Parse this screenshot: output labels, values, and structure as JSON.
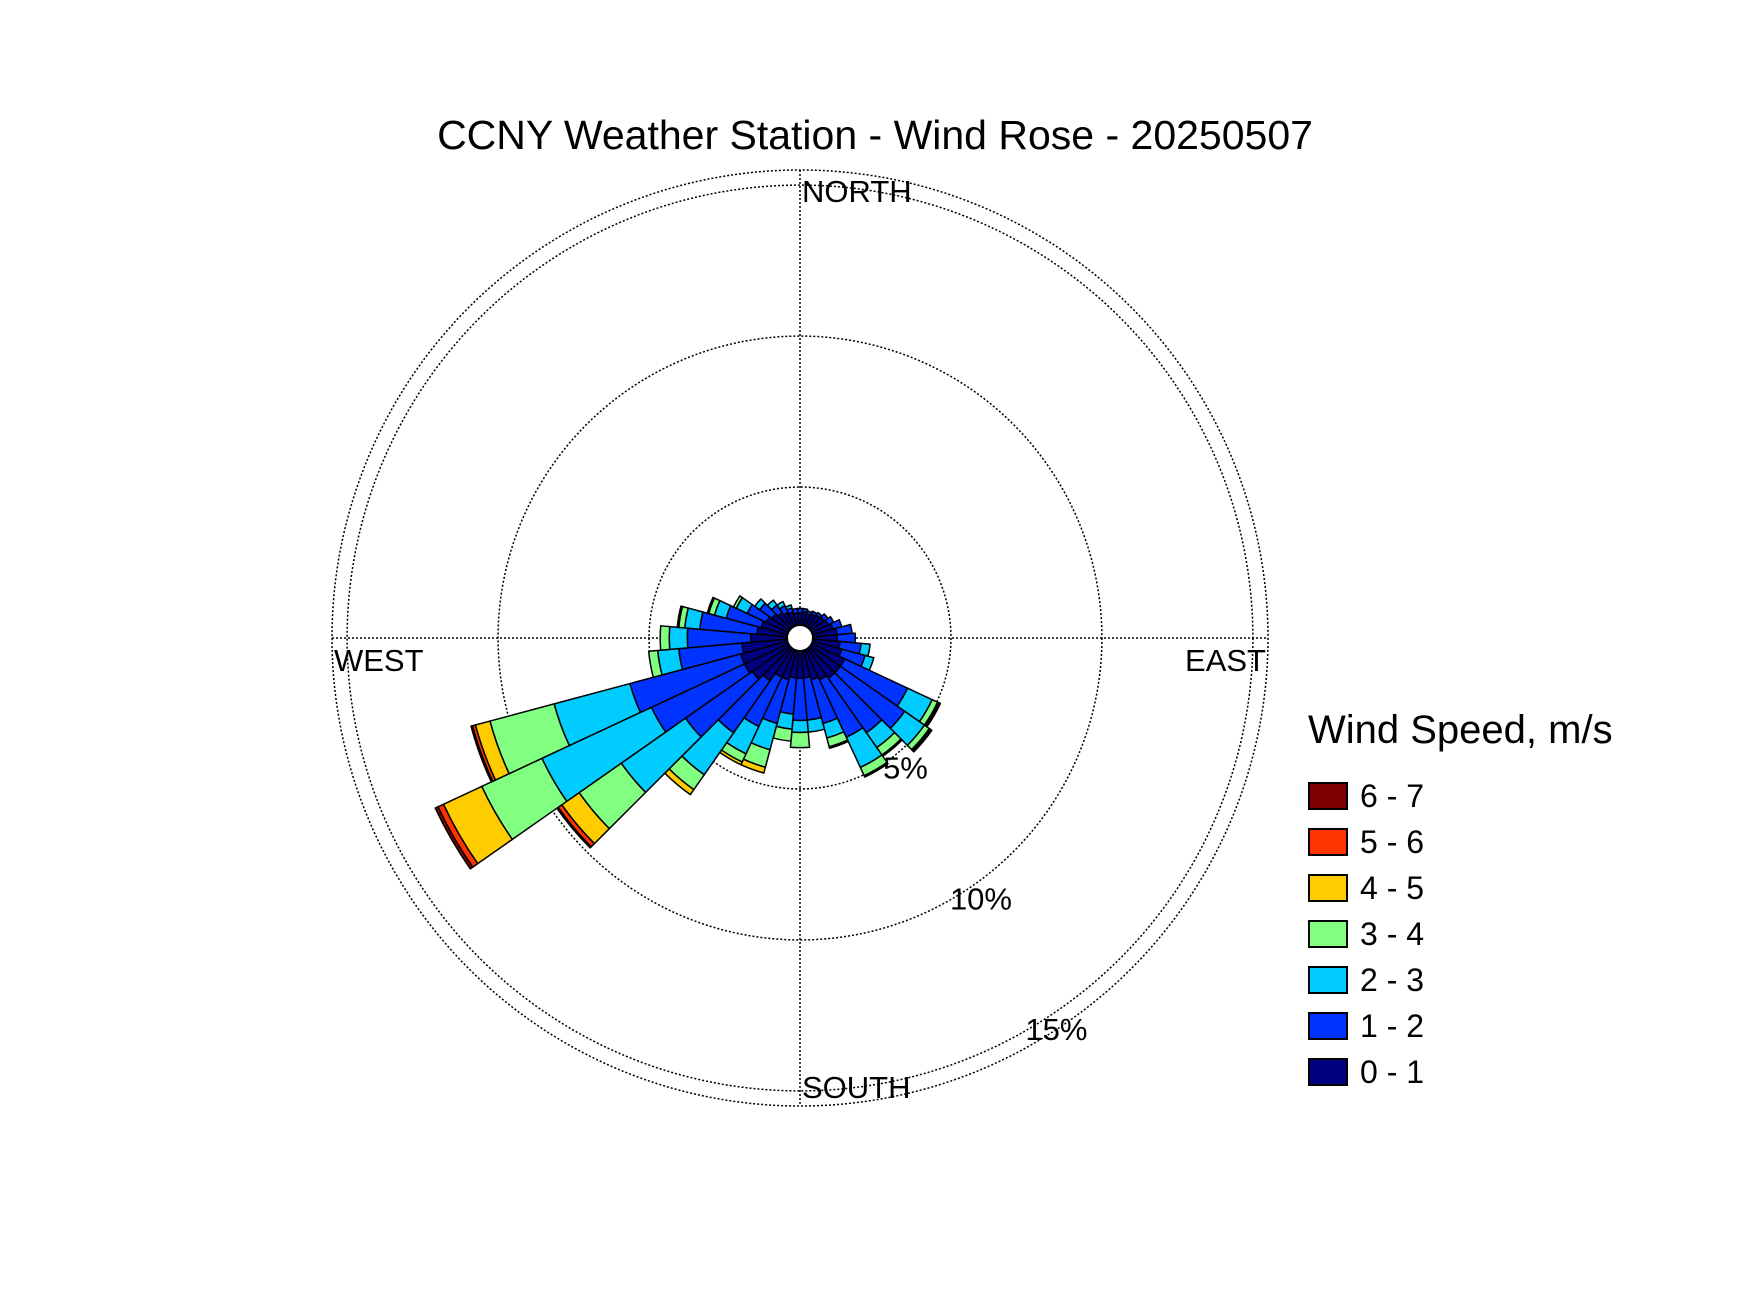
{
  "chart_data": {
    "type": "wind-rose",
    "title": "CCNY Weather Station - Wind Rose - 20250507",
    "direction_labels": {
      "north": "NORTH",
      "south": "SOUTH",
      "east": "EAST",
      "west": "WEST"
    },
    "radial_ticks": [
      {
        "value": 5,
        "label": "5%"
      },
      {
        "value": 10,
        "label": "10%"
      },
      {
        "value": 15,
        "label": "15%"
      }
    ],
    "radial_max": 15.5,
    "legend_title": "Wind Speed, m/s",
    "speed_bins": [
      {
        "label": "0 - 1",
        "color": "#000080"
      },
      {
        "label": "1 - 2",
        "color": "#0033ff"
      },
      {
        "label": "2 - 3",
        "color": "#00ccff"
      },
      {
        "label": "3 - 4",
        "color": "#80ff80"
      },
      {
        "label": "4 - 5",
        "color": "#ffcc00"
      },
      {
        "label": "5 - 6",
        "color": "#ff3300"
      },
      {
        "label": "6 - 7",
        "color": "#800000"
      }
    ],
    "sector_width_deg": 10,
    "sectors": [
      {
        "dir": 0,
        "cum": [
          0.4,
          0.55
        ]
      },
      {
        "dir": 10,
        "cum": [
          0.45,
          0.55
        ]
      },
      {
        "dir": 20,
        "cum": [
          0.4,
          0.5
        ]
      },
      {
        "dir": 30,
        "cum": [
          0.45,
          0.55
        ]
      },
      {
        "dir": 40,
        "cum": [
          0.5,
          0.6
        ]
      },
      {
        "dir": 50,
        "cum": [
          0.55,
          0.7
        ]
      },
      {
        "dir": 60,
        "cum": [
          0.6,
          0.8
        ]
      },
      {
        "dir": 70,
        "cum": [
          0.7,
          1.0
        ]
      },
      {
        "dir": 80,
        "cum": [
          0.8,
          1.3
        ]
      },
      {
        "dir": 90,
        "cum": [
          0.8,
          1.4
        ]
      },
      {
        "dir": 100,
        "cum": [
          0.9,
          1.6,
          1.9
        ]
      },
      {
        "dir": 110,
        "cum": [
          1.0,
          1.8,
          2.1
        ]
      },
      {
        "dir": 120,
        "cum": [
          1.2,
          3.5,
          4.4,
          4.6,
          4.65,
          4.7
        ]
      },
      {
        "dir": 130,
        "cum": [
          1.2,
          3.8,
          4.6,
          4.8,
          4.85,
          4.9
        ]
      },
      {
        "dir": 140,
        "cum": [
          1.2,
          3.4,
          4.0,
          4.3,
          4.35
        ]
      },
      {
        "dir": 150,
        "cum": [
          1.1,
          3.2,
          4.3,
          4.6,
          4.65
        ]
      },
      {
        "dir": 160,
        "cum": [
          1.0,
          2.5,
          3.0,
          3.3,
          3.35
        ]
      },
      {
        "dir": 170,
        "cum": [
          0.9,
          2.3,
          2.7
        ]
      },
      {
        "dir": 180,
        "cum": [
          0.9,
          2.3,
          2.7,
          3.2
        ]
      },
      {
        "dir": 190,
        "cum": [
          0.9,
          2.1,
          2.6,
          3.0
        ]
      },
      {
        "dir": 200,
        "cum": [
          1.0,
          2.5,
          3.4,
          4.0,
          4.2
        ]
      },
      {
        "dir": 210,
        "cum": [
          1.0,
          2.8,
          3.8,
          4.1,
          4.2
        ]
      },
      {
        "dir": 220,
        "cum": [
          1.3,
          3.4,
          5.1,
          5.7,
          5.9
        ]
      },
      {
        "dir": 230,
        "cum": [
          1.5,
          4.2,
          6.8,
          8.5,
          9.2,
          9.35,
          9.4
        ]
      },
      {
        "dir": 240,
        "cum": [
          1.6,
          5.0,
          9.0,
          11.2,
          12.6,
          12.8,
          12.9
        ]
      },
      {
        "dir": 250,
        "cum": [
          1.6,
          5.4,
          8.0,
          10.2,
          10.7,
          10.8,
          10.85
        ]
      },
      {
        "dir": 260,
        "cum": [
          1.5,
          3.6,
          4.3,
          4.6
        ]
      },
      {
        "dir": 270,
        "cum": [
          1.2,
          3.3,
          3.9,
          4.2
        ]
      },
      {
        "dir": 280,
        "cum": [
          1.0,
          2.9,
          3.4,
          3.6,
          3.65
        ]
      },
      {
        "dir": 290,
        "cum": [
          0.9,
          2.1,
          2.5,
          2.7,
          2.75
        ]
      },
      {
        "dir": 300,
        "cum": [
          0.8,
          1.5,
          1.9,
          2.0
        ]
      },
      {
        "dir": 310,
        "cum": [
          0.7,
          1.2,
          1.4
        ]
      },
      {
        "dir": 320,
        "cum": [
          0.6,
          0.9,
          1.1
        ]
      },
      {
        "dir": 330,
        "cum": [
          0.5,
          0.75,
          0.9
        ]
      },
      {
        "dir": 340,
        "cum": [
          0.45,
          0.6,
          0.7
        ]
      },
      {
        "dir": 350,
        "cum": [
          0.4,
          0.55
        ]
      }
    ]
  }
}
